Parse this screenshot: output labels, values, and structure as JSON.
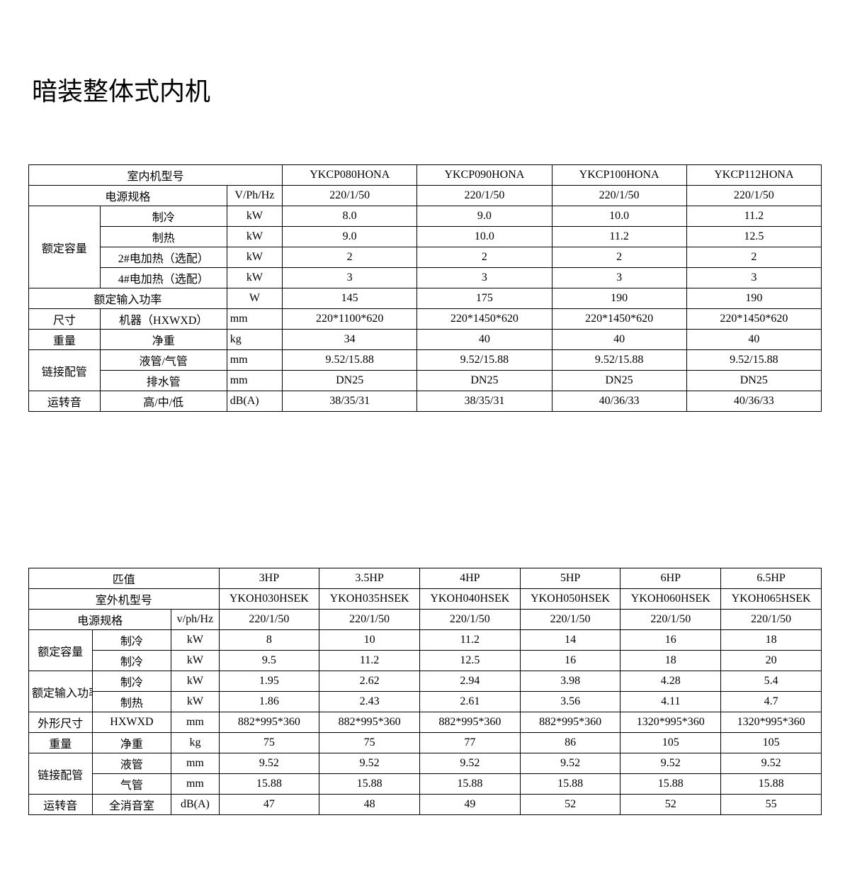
{
  "title": "暗装整体式内机",
  "table1": {
    "col_widths_pct": [
      9,
      16,
      7,
      17,
      17,
      17,
      17
    ],
    "header_models_label": "室内机型号",
    "models": [
      "YKCP080HONA",
      "YKCP090HONA",
      "YKCP100HONA",
      "YKCP112HONA"
    ],
    "rows": [
      {
        "label": "电源规格",
        "label_span": 2,
        "unit": "V/Ph/Hz",
        "vals": [
          "220/1/50",
          "220/1/50",
          "220/1/50",
          "220/1/50"
        ]
      },
      {
        "group": "额定容量",
        "group_rows": 4,
        "sub": "制冷",
        "unit": "kW",
        "vals": [
          "8.0",
          "9.0",
          "10.0",
          "11.2"
        ]
      },
      {
        "sub": "制热",
        "unit": "kW",
        "vals": [
          "9.0",
          "10.0",
          "11.2",
          "12.5"
        ]
      },
      {
        "sub": "2#电加热（选配）",
        "unit": "kW",
        "vals": [
          "2",
          "2",
          "2",
          "2"
        ]
      },
      {
        "sub": "4#电加热（选配）",
        "unit": "kW",
        "vals": [
          "3",
          "3",
          "3",
          "3"
        ]
      },
      {
        "label": "额定输入功率",
        "label_span": 2,
        "unit": "W",
        "vals": [
          "145",
          "175",
          "190",
          "190"
        ]
      },
      {
        "group": "尺寸",
        "group_rows": 1,
        "sub": "机器（HXWXD）",
        "unit": "mm",
        "unit_left": true,
        "vals": [
          "220*1100*620",
          "220*1450*620",
          "220*1450*620",
          "220*1450*620"
        ]
      },
      {
        "group": "重量",
        "group_rows": 1,
        "sub": "净重",
        "unit": "kg",
        "unit_left": true,
        "vals": [
          "34",
          "40",
          "40",
          "40"
        ]
      },
      {
        "group": "链接配管",
        "group_rows": 2,
        "sub": "液管/气管",
        "unit": "mm",
        "unit_left": true,
        "vals": [
          "9.52/15.88",
          "9.52/15.88",
          "9.52/15.88",
          "9.52/15.88"
        ]
      },
      {
        "sub": "排水管",
        "unit": "mm",
        "unit_left": true,
        "vals": [
          "DN25",
          "DN25",
          "DN25",
          "DN25"
        ]
      },
      {
        "group": "运转音",
        "group_rows": 1,
        "sub": "高/中/低",
        "unit": "dB(A)",
        "unit_left": true,
        "vals": [
          "38/35/31",
          "38/35/31",
          "40/36/33",
          "40/36/33"
        ]
      }
    ]
  },
  "table2": {
    "col_widths_pct": [
      8,
      10,
      6,
      12.67,
      12.67,
      12.67,
      12.67,
      12.67,
      12.67
    ],
    "hp_label": "匹值",
    "hp_vals": [
      "3HP",
      "3.5HP",
      "4HP",
      "5HP",
      "6HP",
      "6.5HP"
    ],
    "model_label": "室外机型号",
    "models": [
      "YKOH030HSEK",
      "YKOH035HSEK",
      "YKOH040HSEK",
      "YKOH050HSEK",
      "YKOH060HSEK",
      "YKOH065HSEK"
    ],
    "rows": [
      {
        "label": "电源规格",
        "label_span": 2,
        "unit": "v/ph/Hz",
        "vals": [
          "220/1/50",
          "220/1/50",
          "220/1/50",
          "220/1/50",
          "220/1/50",
          "220/1/50"
        ]
      },
      {
        "group": "额定容量",
        "group_rows": 2,
        "sub": "制冷",
        "unit": "kW",
        "vals": [
          "8",
          "10",
          "11.2",
          "14",
          "16",
          "18"
        ]
      },
      {
        "sub": "制冷",
        "unit": "kW",
        "vals": [
          "9.5",
          "11.2",
          "12.5",
          "16",
          "18",
          "20"
        ]
      },
      {
        "group": "额定输入功率",
        "group_rows": 2,
        "sub": "制冷",
        "unit": "kW",
        "vals": [
          "1.95",
          "2.62",
          "2.94",
          "3.98",
          "4.28",
          "5.4"
        ]
      },
      {
        "sub": "制热",
        "unit": "kW",
        "vals": [
          "1.86",
          "2.43",
          "2.61",
          "3.56",
          "4.11",
          "4.7"
        ]
      },
      {
        "group": "外形尺寸",
        "group_rows": 1,
        "sub": "HXWXD",
        "unit": "mm",
        "vals": [
          "882*995*360",
          "882*995*360",
          "882*995*360",
          "882*995*360",
          "1320*995*360",
          "1320*995*360"
        ]
      },
      {
        "group": "重量",
        "group_rows": 1,
        "sub": "净重",
        "unit": "kg",
        "vals": [
          "75",
          "75",
          "77",
          "86",
          "105",
          "105"
        ]
      },
      {
        "group": "链接配管",
        "group_rows": 2,
        "sub": "液管",
        "unit": "mm",
        "vals": [
          "9.52",
          "9.52",
          "9.52",
          "9.52",
          "9.52",
          "9.52"
        ]
      },
      {
        "sub": "气管",
        "unit": "mm",
        "vals": [
          "15.88",
          "15.88",
          "15.88",
          "15.88",
          "15.88",
          "15.88"
        ]
      },
      {
        "group": "运转音",
        "group_rows": 1,
        "sub": "全消音室",
        "unit": "dB(A)",
        "vals": [
          "47",
          "48",
          "49",
          "52",
          "52",
          "55"
        ]
      }
    ]
  }
}
